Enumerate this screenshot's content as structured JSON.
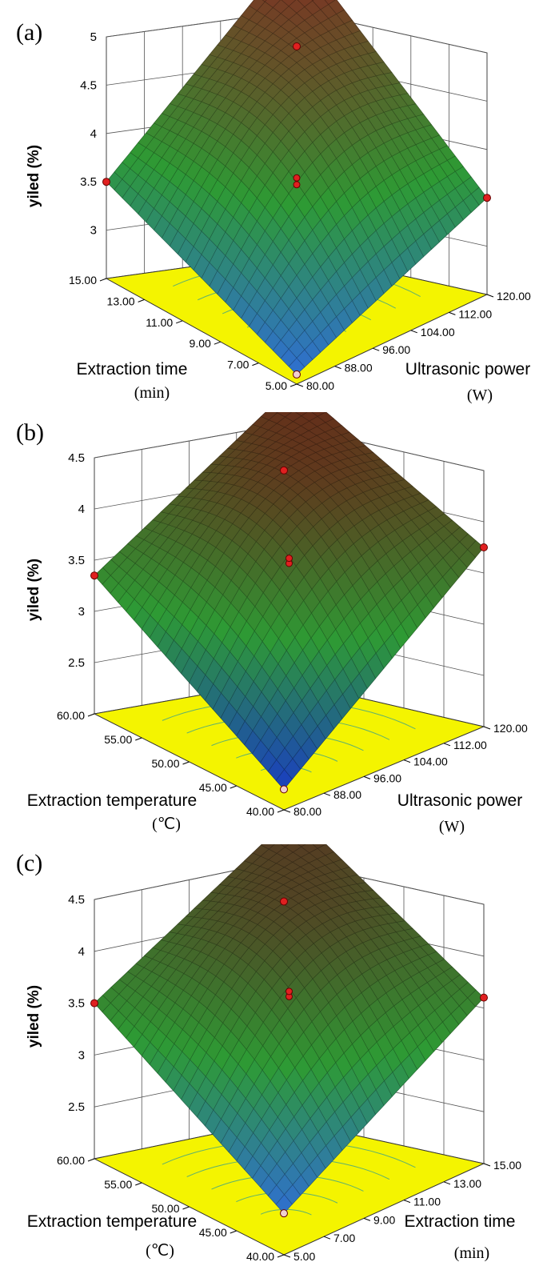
{
  "chart_data": [
    {
      "panel_label": "(a)",
      "type": "surface",
      "zlabel": "yiled (%)",
      "zticks": [
        "3",
        "3.5",
        "4",
        "4.5",
        "5"
      ],
      "zlim": [
        2.5,
        5
      ],
      "left_axis": {
        "name": "Extraction time",
        "unit": "(min)",
        "ticks": [
          "15.00",
          "13.00",
          "11.00",
          "9.00",
          "7.00",
          "5.00"
        ]
      },
      "right_axis": {
        "name": "Ultrasonic power",
        "unit": "(W)",
        "ticks": [
          "80.00",
          "88.00",
          "96.00",
          "104.00",
          "112.00",
          "120.00"
        ]
      },
      "surface_corners": {
        "front": 2.6,
        "left": 3.5,
        "right": 3.5,
        "back": 5.0
      },
      "center_points": [
        4.05,
        4.12
      ],
      "colors": {
        "high": "#8a2020",
        "mid": "#2e9a34",
        "low": "#2f6fd0",
        "floor": "#f4f400"
      }
    },
    {
      "panel_label": "(b)",
      "type": "surface",
      "zlabel": "yiled (%)",
      "zticks": [
        "2.5",
        "3",
        "3.5",
        "4",
        "4.5"
      ],
      "zlim": [
        2,
        4.5
      ],
      "left_axis": {
        "name": "Extraction temperature",
        "unit": "(℃)",
        "ticks": [
          "60.00",
          "55.00",
          "50.00",
          "45.00",
          "40.00"
        ]
      },
      "right_axis": {
        "name": "Ultrasonic power",
        "unit": "(W)",
        "ticks": [
          "80.00",
          "88.00",
          "96.00",
          "104.00",
          "112.00",
          "120.00"
        ]
      },
      "surface_corners": {
        "front": 2.2,
        "left": 3.35,
        "right": 3.75,
        "back": 4.4
      },
      "center_points": [
        4.0,
        4.05
      ],
      "colors": {
        "high": "#6a2418",
        "mid": "#2e9a34",
        "low": "#1a3fc0",
        "floor": "#f4f400"
      }
    },
    {
      "panel_label": "(c)",
      "type": "surface",
      "zlabel": "yiled (%)",
      "zticks": [
        "2.5",
        "3",
        "3.5",
        "4",
        "4.5"
      ],
      "zlim": [
        2,
        4.5
      ],
      "left_axis": {
        "name": "Extraction temperature",
        "unit": "(℃)",
        "ticks": [
          "60.00",
          "55.00",
          "50.00",
          "45.00",
          "40.00"
        ]
      },
      "right_axis": {
        "name": "Extraction time",
        "unit": "(min)",
        "ticks": [
          "5.00",
          "7.00",
          "9.00",
          "11.00",
          "13.00",
          "15.00"
        ]
      },
      "surface_corners": {
        "front": 2.4,
        "left": 3.5,
        "right": 3.6,
        "back": 4.45
      },
      "center_points": [
        4.05,
        4.1
      ],
      "colors": {
        "high": "#5a3020",
        "mid": "#2e9a34",
        "low": "#2f6fd0",
        "floor": "#f4f400"
      }
    }
  ]
}
